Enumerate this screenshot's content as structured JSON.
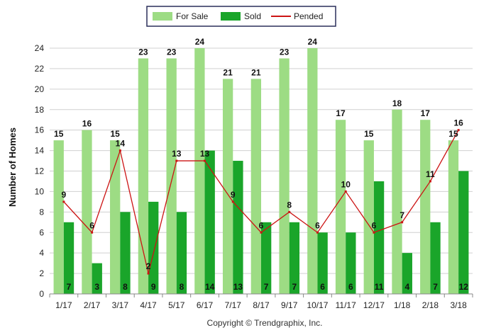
{
  "colors": {
    "for_sale": "#9ddc84",
    "sold": "#1aa52a",
    "pended": "#cc1414",
    "grid": "#d0d0d0",
    "axis": "#888888"
  },
  "footer": "Copyright © Trendgraphix, Inc.",
  "chart_data": {
    "type": "bar",
    "ylabel": "Number of Homes",
    "xlabel": "",
    "ylim": [
      0,
      24
    ],
    "yticks": [
      0,
      2,
      4,
      6,
      8,
      10,
      12,
      14,
      16,
      18,
      20,
      22,
      24
    ],
    "grid": true,
    "legend_position": "top-center",
    "categories": [
      "1/17",
      "2/17",
      "3/17",
      "4/17",
      "5/17",
      "6/17",
      "7/17",
      "8/17",
      "9/17",
      "10/17",
      "11/17",
      "12/17",
      "1/18",
      "2/18",
      "3/18"
    ],
    "series": [
      {
        "name": "For Sale",
        "type": "bar",
        "values": [
          15,
          16,
          15,
          23,
          23,
          24,
          21,
          21,
          23,
          24,
          17,
          15,
          18,
          17,
          15
        ]
      },
      {
        "name": "Sold",
        "type": "bar",
        "values": [
          7,
          3,
          8,
          9,
          8,
          14,
          13,
          7,
          7,
          6,
          6,
          11,
          4,
          7,
          12
        ]
      },
      {
        "name": "Pended",
        "type": "line",
        "values": [
          9,
          6,
          14,
          2,
          13,
          13,
          9,
          6,
          8,
          6,
          10,
          6,
          7,
          11,
          16
        ]
      }
    ]
  }
}
